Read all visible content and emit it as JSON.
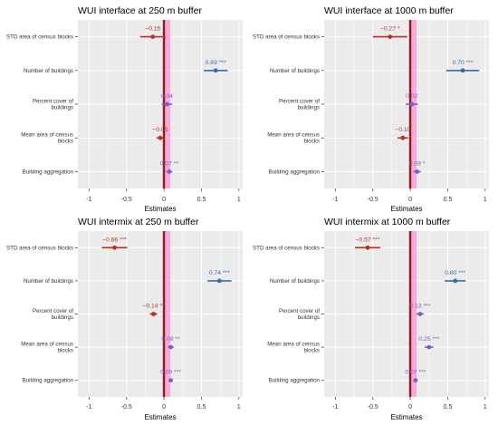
{
  "colors": {
    "panel_bg": "#ebebeb",
    "grid": "#ffffff",
    "zero_line": "#8b1a1a",
    "zero_band": "#f4a6d7",
    "negative": "#b2361f",
    "positive": "#3c68b0",
    "positive_small": "#7b5fc9",
    "axis_text": "#333333"
  },
  "chart_data": [
    {
      "type": "forest",
      "title": "WUI interface at 250 m buffer",
      "xlabel": "Estimates",
      "xlim": [
        -1.15,
        1.05
      ],
      "xticks": [
        "-1",
        "-0.5",
        "0",
        "0.5",
        "1"
      ],
      "grid": true,
      "categories": [
        "STD area of census blocks",
        "Number of buildings",
        "Percent cover of buildings",
        "Mean area of census blocks",
        "Building aggregation"
      ],
      "category_labels": [
        [
          "STD area of census blocks"
        ],
        [
          "Number of buildings"
        ],
        [
          "Percent cover of",
          "buildings"
        ],
        [
          "Mean area of census",
          "blocks"
        ],
        [
          "Building aggregation"
        ]
      ],
      "estimates": [
        -0.15,
        0.69,
        0.04,
        -0.05,
        0.07
      ],
      "ci_low": [
        -0.32,
        0.53,
        -0.03,
        -0.1,
        0.03
      ],
      "ci_high": [
        0.02,
        0.85,
        0.11,
        0.0,
        0.11
      ],
      "labels": [
        "−0.15",
        "0.69 ***",
        "0.04",
        "−0.05",
        "0.07 **"
      ]
    },
    {
      "type": "forest",
      "title": "WUI interface at 1000 m buffer",
      "xlabel": "Estimates",
      "xlim": [
        -1.15,
        1.05
      ],
      "xticks": [
        "-1",
        "-0.5",
        "0",
        "0.5",
        "1"
      ],
      "grid": true,
      "categories": [
        "STD area of census blocks",
        "Number of buildings",
        "Percent cover of buildings",
        "Mean area of census blocks",
        "Building aggregation"
      ],
      "category_labels": [
        [
          "STD area of census blocks"
        ],
        [
          "Number of buildings"
        ],
        [
          "Percent cover of",
          "buildings"
        ],
        [
          "Mean area of census",
          "blocks"
        ],
        [
          "Building aggregation"
        ]
      ],
      "estimates": [
        -0.27,
        0.7,
        0.02,
        -0.1,
        0.09
      ],
      "ci_low": [
        -0.5,
        0.48,
        -0.06,
        -0.17,
        0.04
      ],
      "ci_high": [
        -0.04,
        0.92,
        0.1,
        -0.03,
        0.14
      ],
      "labels": [
        "−0.27 *",
        "0.70 ***",
        "0.02",
        "−0.10",
        "0.09 *"
      ]
    },
    {
      "type": "forest",
      "title": "WUI intermix at 250 m buffer",
      "xlabel": "Estimates",
      "xlim": [
        -1.15,
        1.05
      ],
      "xticks": [
        "-1",
        "-0.5",
        "0",
        "0.5",
        "1"
      ],
      "grid": true,
      "categories": [
        "STD area of census blocks",
        "Number of buildings",
        "Percent cover of buildings",
        "Mean area of census blocks",
        "Building aggregation"
      ],
      "category_labels": [
        [
          "STD area of census blocks"
        ],
        [
          "Number of buildings"
        ],
        [
          "Percent cover of",
          "buildings"
        ],
        [
          "Mean area of census",
          "blocks"
        ],
        [
          "Building aggregation"
        ]
      ],
      "estimates": [
        -0.66,
        0.74,
        -0.14,
        0.09,
        0.09
      ],
      "ci_low": [
        -0.83,
        0.58,
        -0.19,
        0.05,
        0.06
      ],
      "ci_high": [
        -0.49,
        0.9,
        -0.09,
        0.13,
        0.12
      ],
      "labels": [
        "−0.66 ***",
        "0.74 ***",
        "−0.14 **",
        "0.09 **",
        "0.09 ***"
      ]
    },
    {
      "type": "forest",
      "title": "WUI intermix at 1000 m buffer",
      "xlabel": "Estimates",
      "xlim": [
        -1.15,
        1.05
      ],
      "xticks": [
        "-1",
        "-0.5",
        "0",
        "0.5",
        "1"
      ],
      "grid": true,
      "categories": [
        "STD area of census blocks",
        "Number of buildings",
        "Percent cover of buildings",
        "Mean area of census blocks",
        "Building aggregation"
      ],
      "category_labels": [
        [
          "STD area of census blocks"
        ],
        [
          "Number of buildings"
        ],
        [
          "Percent cover of",
          "buildings"
        ],
        [
          "Mean area of census",
          "blocks"
        ],
        [
          "Building aggregation"
        ]
      ],
      "estimates": [
        -0.57,
        0.6,
        0.13,
        0.25,
        0.07
      ],
      "ci_low": [
        -0.74,
        0.46,
        0.08,
        0.19,
        0.04
      ],
      "ci_high": [
        -0.4,
        0.74,
        0.18,
        0.31,
        0.1
      ],
      "labels": [
        "−0.57 ***",
        "0.60 ***",
        "0.13 ***",
        "0.25 ***",
        "0.07 ***"
      ]
    }
  ]
}
